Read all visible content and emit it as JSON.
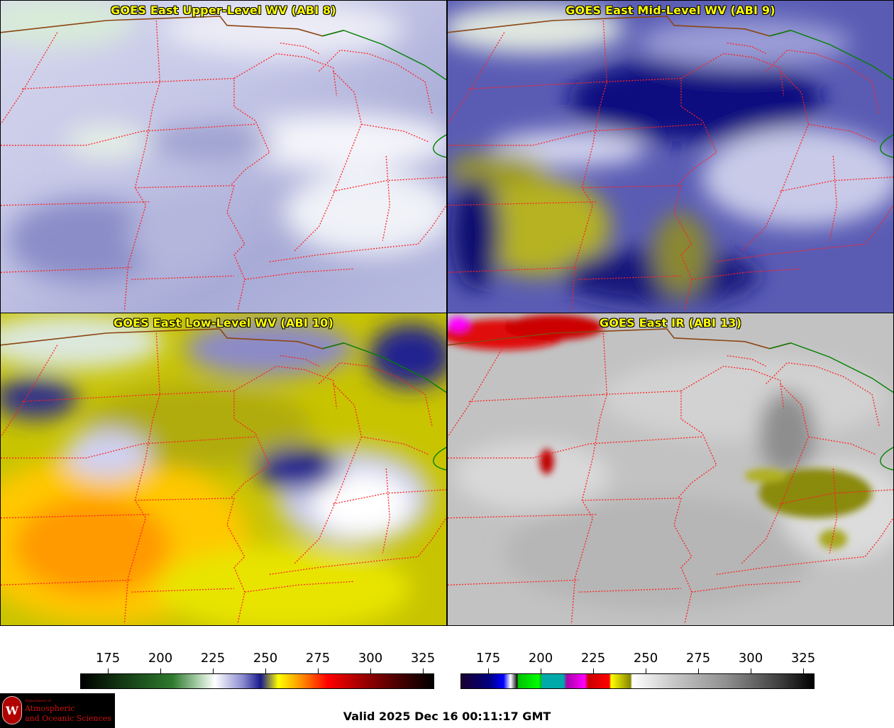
{
  "panels": [
    {
      "title": "GOES East Upper-Level WV (ABI 8)"
    },
    {
      "title": "GOES East Mid-Level WV (ABI 9)"
    },
    {
      "title": "GOES East Low-Level WV (ABI 10)"
    },
    {
      "title": "GOES East IR (ABI 13)"
    }
  ],
  "colorbars": {
    "wv_ticks": [
      "175",
      "200",
      "225",
      "250",
      "275",
      "300",
      "325"
    ],
    "ir_ticks": [
      "175",
      "200",
      "225",
      "250",
      "275",
      "300",
      "325"
    ]
  },
  "logo": {
    "seal_letter": "W",
    "dept": "Department of",
    "line1": "Atmospheric",
    "line2": "and Oceanic Sciences"
  },
  "valid_time": "Valid 2025 Dec 16 00:11:17 GMT",
  "colors": {
    "title_text": "#ffff00",
    "state_borders": "#ff2020",
    "intl_border": "#8b4513",
    "lake_border": "#008000"
  }
}
